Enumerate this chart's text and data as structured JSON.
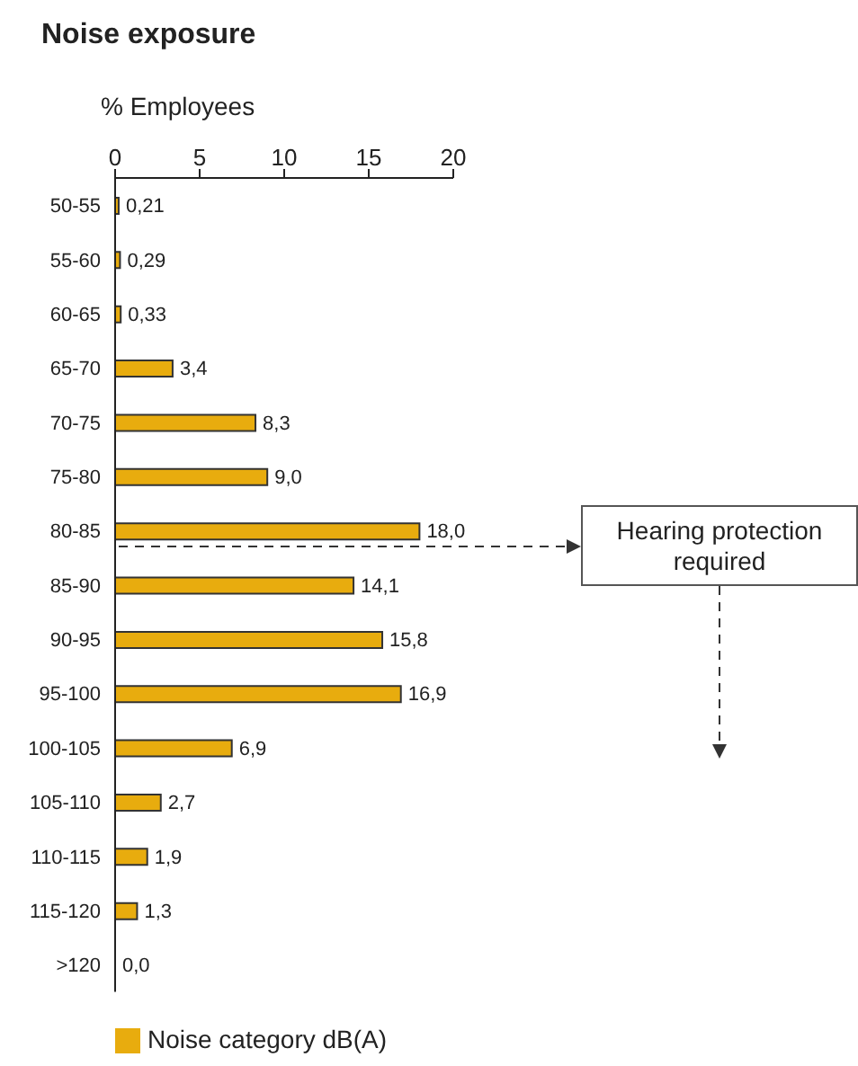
{
  "chart_data": {
    "type": "bar",
    "orientation": "horizontal",
    "title": "Noise exposure",
    "xlabel": "% Employees",
    "categories": [
      "50-55",
      "55-60",
      "60-65",
      "65-70",
      "70-75",
      "75-80",
      "80-85",
      "85-90",
      "90-95",
      "95-100",
      "100-105",
      "105-110",
      "110-115",
      "115-120",
      ">120"
    ],
    "series": [
      {
        "name": "Noise category dB(A)",
        "color": "#e8ac0e",
        "values": [
          0.21,
          0.29,
          0.33,
          3.4,
          8.3,
          9.0,
          18.0,
          14.1,
          15.8,
          16.9,
          6.9,
          2.7,
          1.9,
          1.3,
          0.0
        ],
        "value_labels": [
          "0,21",
          "0,29",
          "0,33",
          "3,4",
          "8,3",
          "9,0",
          "18,0",
          "14,1",
          "15,8",
          "16,9",
          "6,9",
          "2,7",
          "1,9",
          "1,3",
          "0,0"
        ]
      }
    ],
    "xlim": [
      0,
      20
    ],
    "xticks": [
      0,
      5,
      10,
      15,
      20
    ],
    "grid": false,
    "legend": "bottom",
    "annotations": [
      "Hearing protection required"
    ]
  }
}
